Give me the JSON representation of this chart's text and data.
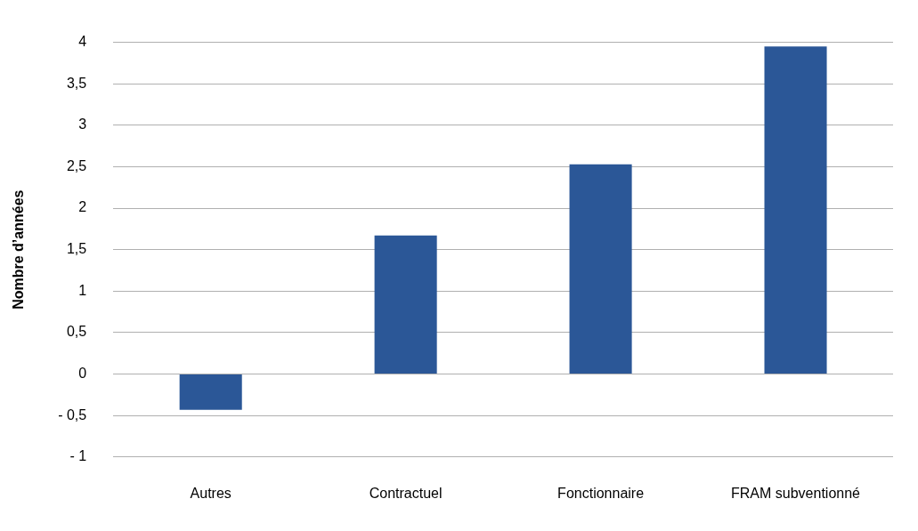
{
  "chart_data": {
    "type": "bar",
    "ylabel": "Nombre d’années",
    "categories": [
      "Autres",
      "Contractuel",
      "Fonctionnaire",
      "FRAM subventionné"
    ],
    "values": [
      -0.43,
      1.67,
      2.53,
      3.95
    ],
    "color": "#2b5797",
    "ylim": [
      -1,
      4
    ],
    "yticks": [
      {
        "value": -1,
        "label": "- 1"
      },
      {
        "value": -0.5,
        "label": "- 0,5"
      },
      0,
      {
        "value": 0.5,
        "label": "0,5"
      },
      1,
      {
        "value": 1.5,
        "label": "1,5"
      },
      2,
      {
        "value": 2.5,
        "label": "2,5"
      },
      3,
      {
        "value": 3.5,
        "label": "3,5"
      },
      4
    ],
    "grid": "y"
  }
}
